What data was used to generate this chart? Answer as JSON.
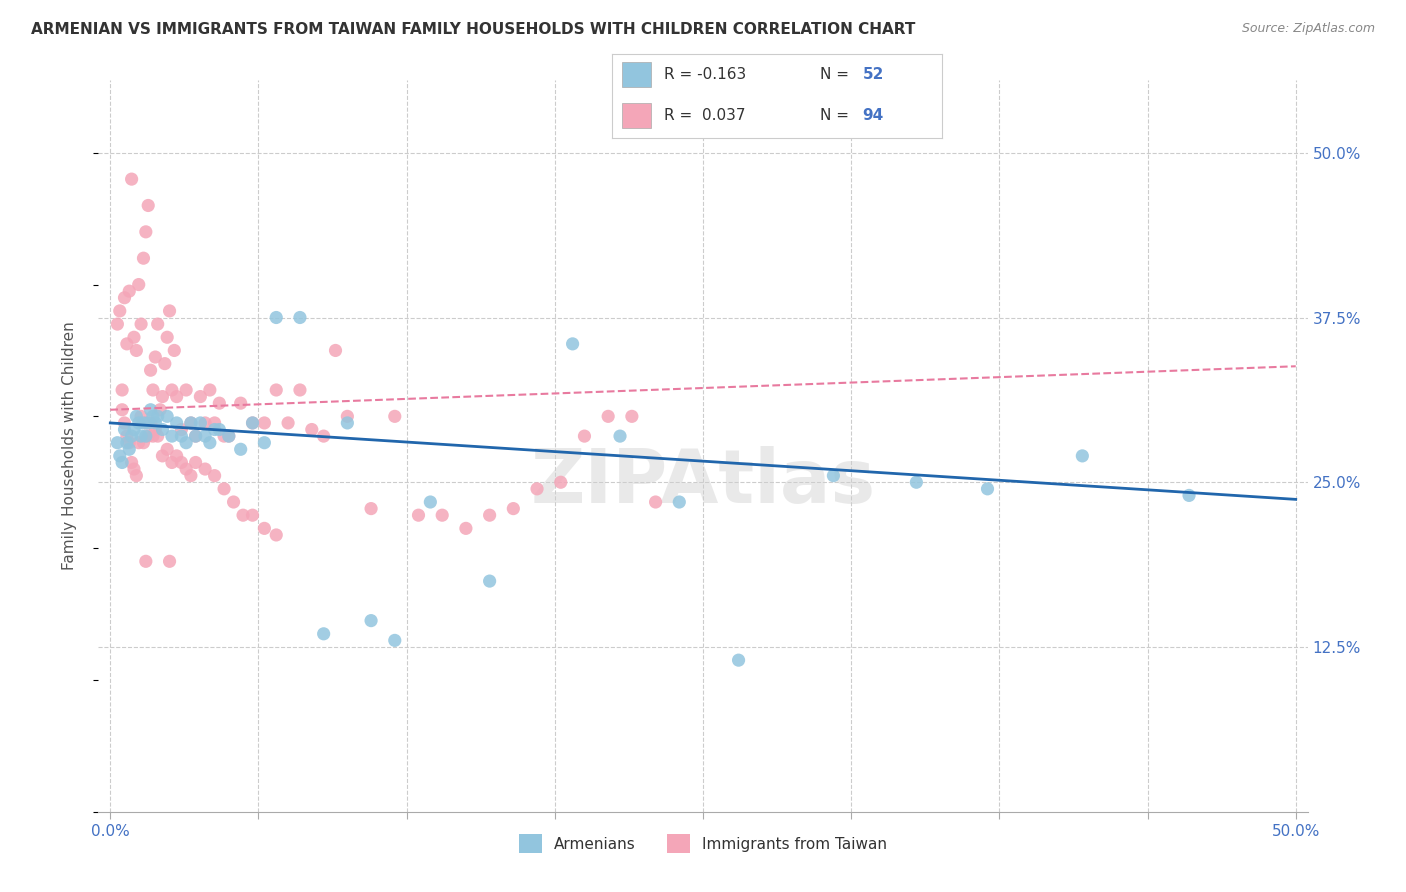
{
  "title": "ARMENIAN VS IMMIGRANTS FROM TAIWAN FAMILY HOUSEHOLDS WITH CHILDREN CORRELATION CHART",
  "source": "Source: ZipAtlas.com",
  "ylabel": "Family Households with Children",
  "ytick_labels": [
    "50.0%",
    "37.5%",
    "25.0%",
    "12.5%"
  ],
  "ytick_values": [
    0.5,
    0.375,
    0.25,
    0.125
  ],
  "xtick_values": [
    0.0,
    0.0625,
    0.125,
    0.1875,
    0.25,
    0.3125,
    0.375,
    0.4375,
    0.5
  ],
  "xlim": [
    -0.005,
    0.505
  ],
  "ylim": [
    0.0,
    0.555
  ],
  "legend_armenians": "Armenians",
  "legend_taiwan": "Immigrants from Taiwan",
  "blue_color": "#92c5de",
  "pink_color": "#f4a6b8",
  "blue_line_color": "#2166ac",
  "pink_line_color": "#e87a9f",
  "title_fontsize": 11,
  "source_fontsize": 9,
  "watermark": "ZIPAtlas",
  "arm_line_x0": 0.0,
  "arm_line_x1": 0.5,
  "arm_line_y0": 0.295,
  "arm_line_y1": 0.237,
  "tai_line_x0": 0.0,
  "tai_line_x1": 0.5,
  "tai_line_y0": 0.305,
  "tai_line_y1": 0.338,
  "armenians_x": [
    0.003,
    0.004,
    0.005,
    0.006,
    0.007,
    0.008,
    0.009,
    0.01,
    0.011,
    0.012,
    0.013,
    0.014,
    0.015,
    0.016,
    0.017,
    0.018,
    0.019,
    0.02,
    0.022,
    0.024,
    0.026,
    0.028,
    0.03,
    0.032,
    0.034,
    0.036,
    0.038,
    0.04,
    0.042,
    0.044,
    0.046,
    0.05,
    0.055,
    0.06,
    0.065,
    0.07,
    0.08,
    0.09,
    0.1,
    0.11,
    0.12,
    0.135,
    0.16,
    0.195,
    0.215,
    0.24,
    0.265,
    0.305,
    0.34,
    0.37,
    0.41,
    0.455
  ],
  "armenians_y": [
    0.28,
    0.27,
    0.265,
    0.29,
    0.28,
    0.275,
    0.285,
    0.29,
    0.3,
    0.295,
    0.285,
    0.295,
    0.285,
    0.295,
    0.305,
    0.3,
    0.295,
    0.3,
    0.29,
    0.3,
    0.285,
    0.295,
    0.285,
    0.28,
    0.295,
    0.285,
    0.295,
    0.285,
    0.28,
    0.29,
    0.29,
    0.285,
    0.275,
    0.295,
    0.28,
    0.375,
    0.375,
    0.135,
    0.295,
    0.145,
    0.13,
    0.235,
    0.175,
    0.355,
    0.285,
    0.235,
    0.115,
    0.255,
    0.25,
    0.245,
    0.27,
    0.24
  ],
  "taiwan_x": [
    0.003,
    0.004,
    0.005,
    0.006,
    0.007,
    0.008,
    0.009,
    0.01,
    0.011,
    0.012,
    0.013,
    0.014,
    0.015,
    0.016,
    0.017,
    0.018,
    0.019,
    0.02,
    0.021,
    0.022,
    0.023,
    0.024,
    0.025,
    0.026,
    0.027,
    0.028,
    0.03,
    0.032,
    0.034,
    0.036,
    0.038,
    0.04,
    0.042,
    0.044,
    0.046,
    0.048,
    0.05,
    0.055,
    0.06,
    0.065,
    0.07,
    0.075,
    0.08,
    0.085,
    0.09,
    0.095,
    0.1,
    0.11,
    0.12,
    0.13,
    0.14,
    0.15,
    0.16,
    0.17,
    0.18,
    0.19,
    0.2,
    0.21,
    0.22,
    0.23,
    0.006,
    0.007,
    0.008,
    0.009,
    0.01,
    0.011,
    0.012,
    0.013,
    0.014,
    0.015,
    0.016,
    0.017,
    0.018,
    0.019,
    0.02,
    0.022,
    0.024,
    0.026,
    0.028,
    0.03,
    0.032,
    0.034,
    0.036,
    0.04,
    0.044,
    0.048,
    0.052,
    0.056,
    0.06,
    0.065,
    0.07,
    0.005,
    0.015,
    0.025
  ],
  "taiwan_y": [
    0.37,
    0.38,
    0.32,
    0.39,
    0.355,
    0.395,
    0.48,
    0.36,
    0.35,
    0.4,
    0.37,
    0.42,
    0.44,
    0.46,
    0.335,
    0.32,
    0.345,
    0.37,
    0.305,
    0.315,
    0.34,
    0.36,
    0.38,
    0.32,
    0.35,
    0.315,
    0.29,
    0.32,
    0.295,
    0.285,
    0.315,
    0.295,
    0.32,
    0.295,
    0.31,
    0.285,
    0.285,
    0.31,
    0.295,
    0.295,
    0.32,
    0.295,
    0.32,
    0.29,
    0.285,
    0.35,
    0.3,
    0.23,
    0.3,
    0.225,
    0.225,
    0.215,
    0.225,
    0.23,
    0.245,
    0.25,
    0.285,
    0.3,
    0.3,
    0.235,
    0.295,
    0.285,
    0.28,
    0.265,
    0.26,
    0.255,
    0.28,
    0.3,
    0.28,
    0.295,
    0.285,
    0.295,
    0.285,
    0.29,
    0.285,
    0.27,
    0.275,
    0.265,
    0.27,
    0.265,
    0.26,
    0.255,
    0.265,
    0.26,
    0.255,
    0.245,
    0.235,
    0.225,
    0.225,
    0.215,
    0.21,
    0.305,
    0.19,
    0.19
  ]
}
